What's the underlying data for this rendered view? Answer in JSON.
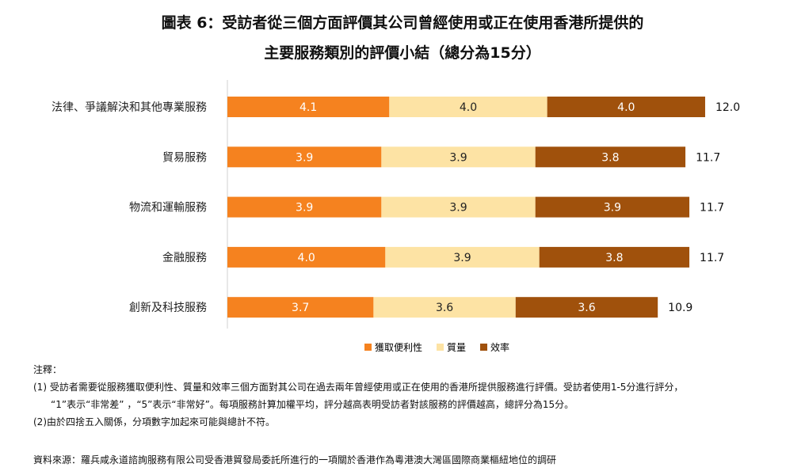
{
  "title_line1": "圖表 6：受訪者從三個方面評價其公司曾經使用或正在使用香港所提供的",
  "title_line2": "主要服務類別的評價小結（總分為15分）",
  "chart_data": {
    "type": "bar",
    "orientation": "horizontal",
    "stacked": true,
    "categories": [
      "法律、爭議解決和其他專業服務",
      "貿易服務",
      "物流和運輸服務",
      "金融服務",
      "創新及科技服務"
    ],
    "series": [
      {
        "name": "獲取便利性",
        "color": "#f5821f",
        "values": [
          4.1,
          3.9,
          3.9,
          4.0,
          3.7
        ],
        "labels": [
          "4.1",
          "3.9",
          "3.9",
          "4.0",
          "3.7"
        ]
      },
      {
        "name": "質量",
        "color": "#fde3a4",
        "values": [
          4.0,
          3.9,
          3.9,
          3.9,
          3.6
        ],
        "labels": [
          "4.0",
          "3.9",
          "3.9",
          "3.9",
          "3.6"
        ]
      },
      {
        "name": "效率",
        "color": "#a0510c",
        "values": [
          4.0,
          3.8,
          3.9,
          3.8,
          3.6
        ],
        "labels": [
          "4.0",
          "3.8",
          "3.9",
          "3.8",
          "3.6"
        ]
      }
    ],
    "totals": [
      "12.0",
      "11.7",
      "11.7",
      "11.7",
      "10.9"
    ],
    "xlim": [
      0,
      15
    ],
    "grid": false,
    "legend_position": "bottom"
  },
  "legend": {
    "items": [
      {
        "label": "獲取便利性",
        "color": "#f5821f"
      },
      {
        "label": "質量",
        "color": "#fde3a4"
      },
      {
        "label": "效率",
        "color": "#a0510c"
      }
    ]
  },
  "notes": {
    "heading": "注釋：",
    "line1": "(1) 受訪者需要從服務獲取便利性、質量和效率三個方面對其公司在過去兩年曾經使用或正在使用的香港所提供服務進行評價。受訪者使用1-5分進行評分，",
    "line2": "“1”表示“非常差” ，“5”表示“非常好”。每項服務計算加權平均，評分越高表明受訪者對該服務的評價越高，總評分為15分。",
    "line3": "(2)由於四捨五入關係，分項數字加起來可能與總計不符。"
  },
  "source": "資料來源：羅兵咸永道諮詢服務有限公司受香港貿發局委託所進行的一項關於香港作為粵港澳大灣區國際商業樞紐地位的調研"
}
